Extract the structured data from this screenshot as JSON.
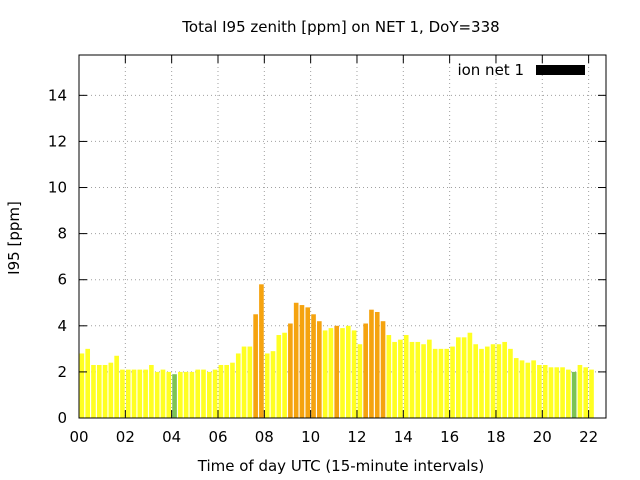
{
  "chart_data": {
    "type": "bar",
    "title": "Total I95 zenith [ppm] on NET 1, DoY=338",
    "xlabel": "Time of day UTC (15-minute intervals)",
    "ylabel": "I95 [ppm]",
    "xlim": [
      0,
      22.75
    ],
    "ylim": [
      0,
      15.75
    ],
    "x_ticks": [
      "00",
      "02",
      "04",
      "06",
      "08",
      "10",
      "12",
      "14",
      "16",
      "18",
      "20",
      "22"
    ],
    "y_ticks": [
      "0",
      "2",
      "4",
      "6",
      "8",
      "10",
      "12",
      "14"
    ],
    "grid": true,
    "legend": {
      "label": "ion net 1",
      "position": "top-right",
      "color": "#000000"
    },
    "bar_interval_hours": 0.25,
    "start_hour": 0,
    "colors": {
      "green": "#7cc354",
      "yellow": "#ffff22",
      "orange": "#f5a30f"
    },
    "values": [
      2.8,
      3.0,
      2.3,
      2.3,
      2.3,
      2.4,
      2.7,
      2.1,
      2.1,
      2.1,
      2.1,
      2.1,
      2.3,
      2.0,
      2.1,
      2.0,
      1.9,
      2.0,
      2.0,
      2.0,
      2.1,
      2.1,
      2.0,
      2.1,
      2.3,
      2.3,
      2.4,
      2.8,
      3.1,
      3.1,
      4.5,
      5.8,
      2.8,
      2.9,
      3.6,
      3.7,
      4.1,
      5.0,
      4.9,
      4.8,
      4.5,
      4.2,
      3.8,
      3.9,
      4.0,
      3.9,
      4.0,
      3.8,
      3.2,
      4.1,
      4.7,
      4.6,
      4.2,
      3.6,
      3.3,
      3.4,
      3.6,
      3.3,
      3.3,
      3.2,
      3.4,
      3.0,
      3.0,
      3.0,
      3.1,
      3.5,
      3.5,
      3.7,
      3.2,
      3.0,
      3.1,
      3.2,
      3.2,
      3.3,
      3.0,
      2.6,
      2.5,
      2.4,
      2.5,
      2.3,
      2.3,
      2.2,
      2.2,
      2.2,
      2.1,
      2.0,
      2.3,
      2.2,
      2.1
    ],
    "bar_colors": [
      "yellow",
      "yellow",
      "yellow",
      "yellow",
      "yellow",
      "yellow",
      "yellow",
      "yellow",
      "yellow",
      "yellow",
      "yellow",
      "yellow",
      "yellow",
      "yellow",
      "yellow",
      "yellow",
      "green",
      "yellow",
      "yellow",
      "yellow",
      "yellow",
      "yellow",
      "yellow",
      "yellow",
      "yellow",
      "yellow",
      "yellow",
      "yellow",
      "yellow",
      "yellow",
      "orange",
      "orange",
      "yellow",
      "yellow",
      "yellow",
      "yellow",
      "orange",
      "orange",
      "orange",
      "orange",
      "orange",
      "orange",
      "yellow",
      "yellow",
      "orange",
      "yellow",
      "yellow",
      "yellow",
      "yellow",
      "orange",
      "orange",
      "orange",
      "orange",
      "yellow",
      "yellow",
      "yellow",
      "yellow",
      "yellow",
      "yellow",
      "yellow",
      "yellow",
      "yellow",
      "yellow",
      "yellow",
      "yellow",
      "yellow",
      "yellow",
      "yellow",
      "yellow",
      "yellow",
      "yellow",
      "yellow",
      "yellow",
      "yellow",
      "yellow",
      "yellow",
      "yellow",
      "yellow",
      "yellow",
      "yellow",
      "yellow",
      "yellow",
      "yellow",
      "yellow",
      "yellow",
      "green",
      "yellow",
      "yellow",
      "yellow"
    ]
  }
}
